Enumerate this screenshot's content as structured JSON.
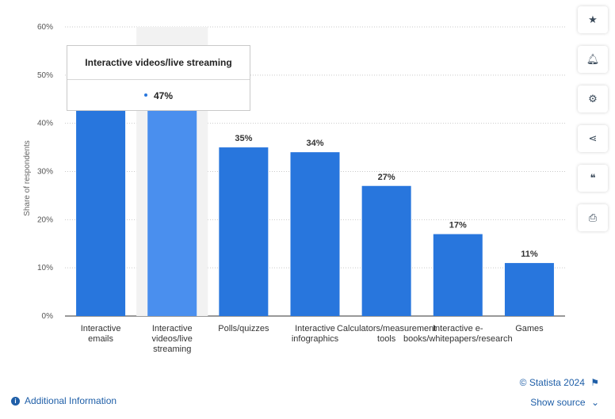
{
  "chart_data": {
    "type": "bar",
    "categories": [
      [
        "Interactive",
        "emails"
      ],
      [
        "Interactive",
        "videos/live",
        "streaming"
      ],
      [
        "Polls/quizzes"
      ],
      [
        "Interactive",
        "infographics"
      ],
      [
        "Calculators/measurement",
        "tools"
      ],
      [
        "Interactive e-",
        "books/whitepapers/research"
      ],
      [
        "Games"
      ]
    ],
    "values": [
      43,
      47,
      35,
      34,
      27,
      17,
      11
    ],
    "data_labels": [
      "",
      "",
      "35%",
      "34%",
      "27%",
      "17%",
      "11%"
    ],
    "ylabel": "Share of respondents",
    "ylim": [
      0,
      60
    ],
    "yticks": [
      "0%",
      "10%",
      "20%",
      "30%",
      "40%",
      "50%",
      "60%"
    ],
    "grid": true,
    "highlighted_index": 1,
    "bar_color": "#2876dd",
    "highlight_color": "#4a8fee",
    "band_color": "#f2f2f2"
  },
  "tooltip": {
    "title": "Interactive videos/live streaming",
    "value": "47%"
  },
  "toolbar": {
    "icons": [
      "star-icon",
      "bell-icon",
      "gear-icon",
      "share-icon",
      "quote-icon",
      "print-icon"
    ],
    "glyphs": [
      "★",
      "🔔︎",
      "⚙",
      "⋖",
      "❝",
      "⎙"
    ]
  },
  "footer": {
    "credit": "© Statista 2024",
    "show_source": "Show source",
    "additional_info": "Additional Information"
  }
}
